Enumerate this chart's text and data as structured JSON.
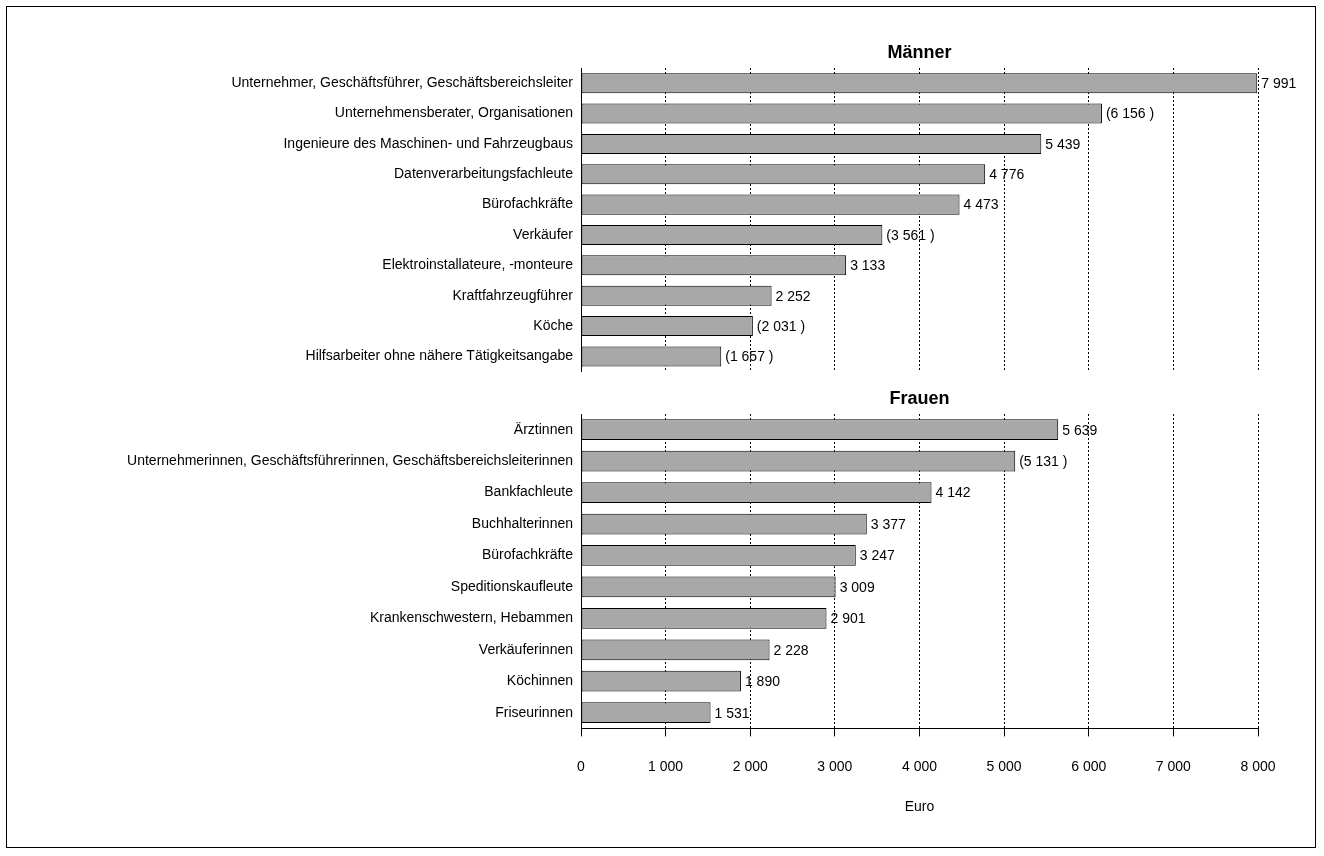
{
  "chart_data": [
    {
      "type": "bar",
      "orientation": "horizontal",
      "title": "Männer",
      "categories": [
        "Unternehmer, Geschäftsführer, Geschäftsbereichsleiter",
        "Unternehmensberater, Organisationen",
        "Ingenieure des Maschinen- und Fahrzeugbaus",
        "Datenverarbeitungsfachleute",
        "Bürofachkräfte",
        "Verkäufer",
        "Elektroinstallateure, -monteure",
        "Kraftfahrzeugführer",
        "Köche",
        "Hilfsarbeiter ohne nähere Tätigkeitsangabe"
      ],
      "values": [
        7991,
        6156,
        5439,
        4776,
        4473,
        3561,
        3133,
        2252,
        2031,
        1657
      ],
      "value_labels": [
        "7 991",
        "(6 156 )",
        "5 439",
        "4 776",
        "4 473",
        "(3 561 )",
        "3 133",
        "2 252",
        "(2 031 )",
        "(1 657 )"
      ],
      "color": "#a8a8a8",
      "xlim": [
        0,
        8000
      ],
      "xticks": [
        {
          "value": 0,
          "label": null
        },
        {
          "value": 1000,
          "label": null
        },
        {
          "value": 2000,
          "label": null
        },
        {
          "value": 3000,
          "label": null
        },
        {
          "value": 4000,
          "label": null
        },
        {
          "value": 5000,
          "label": null
        },
        {
          "value": 6000,
          "label": null
        },
        {
          "value": 7000,
          "label": null
        },
        {
          "value": 8000,
          "label": null
        }
      ],
      "grid": "x"
    },
    {
      "type": "bar",
      "orientation": "horizontal",
      "title": "Frauen",
      "xlabel": "Euro",
      "categories": [
        "Ärztinnen",
        "Unternehmerinnen, Geschäftsführerinnen, Geschäftsbereichsleiterinnen",
        "Bankfachleute",
        "Buchhalterinnen",
        "Bürofachkräfte",
        "Speditionskaufleute",
        "Krankenschwestern, Hebammen",
        "Verkäuferinnen",
        "Köchinnen",
        "Friseurinnen"
      ],
      "values": [
        5639,
        5131,
        4142,
        3377,
        3247,
        3009,
        2901,
        2228,
        1890,
        1531
      ],
      "value_labels": [
        "5 639",
        "(5 131 )",
        "4 142",
        "3 377",
        "3 247",
        "3 009",
        "2 901",
        "2 228",
        "1 890",
        "1 531"
      ],
      "color": "#a8a8a8",
      "xlim": [
        0,
        8000
      ],
      "xticks": [
        0,
        {
          "value": 1000,
          "label": "1 000"
        },
        {
          "value": 2000,
          "label": "2 000"
        },
        {
          "value": 3000,
          "label": "3 000"
        },
        {
          "value": 4000,
          "label": "4 000"
        },
        {
          "value": 5000,
          "label": "5 000"
        },
        {
          "value": 6000,
          "label": "6 000"
        },
        {
          "value": 7000,
          "label": "7 000"
        },
        {
          "value": 8000,
          "label": "8 000"
        }
      ],
      "grid": "x"
    }
  ]
}
